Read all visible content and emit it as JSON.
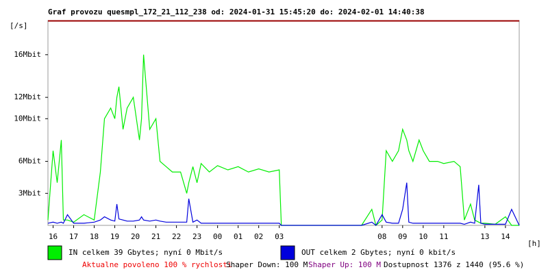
{
  "chart_data": {
    "type": "line",
    "title": "Graf provozu quesmpl_172_21_112_238 od: 2024-01-31 15:45:20 do: 2024-02-01 14:40:38",
    "y_label": "[/s]",
    "x_label": "[h]",
    "xlim": [
      15.75,
      38.67
    ],
    "ylim": [
      0,
      19.2
    ],
    "xticks": [
      16,
      17,
      18,
      19,
      20,
      21,
      22,
      23,
      {
        "value": 24,
        "label": "00"
      },
      {
        "value": 25,
        "label": "01"
      },
      {
        "value": 26,
        "label": "02"
      },
      {
        "value": 27,
        "label": "03"
      },
      {
        "value": 32,
        "label": "08"
      },
      {
        "value": 33,
        "label": "09"
      },
      {
        "value": 34,
        "label": "10"
      },
      {
        "value": 35,
        "label": "11"
      },
      {
        "value": 37,
        "label": "13"
      },
      {
        "value": 38,
        "label": "14"
      }
    ],
    "yticks": [
      {
        "value": 3,
        "label": "3Mbit"
      },
      {
        "value": 6,
        "label": "6Mbit"
      },
      {
        "value": 10,
        "label": "10Mbit"
      },
      {
        "value": 12,
        "label": "12Mbit"
      },
      {
        "value": 16,
        "label": "16Mbit"
      }
    ],
    "grid": false,
    "x": [
      15.75,
      16,
      16.2,
      16.4,
      16.5,
      16.7,
      17,
      17.5,
      18,
      18.3,
      18.5,
      18.8,
      19,
      19.1,
      19.2,
      19.4,
      19.6,
      19.9,
      20.2,
      20.3,
      20.4,
      20.7,
      21,
      21.2,
      21.5,
      21.8,
      22.2,
      22.5,
      22.6,
      22.8,
      23,
      23.2,
      23.6,
      24,
      24.5,
      25,
      25.5,
      26,
      26.5,
      27,
      27.1,
      28,
      29,
      30,
      31,
      31.5,
      31.7,
      32,
      32.2,
      32.5,
      32.8,
      33,
      33.2,
      33.3,
      33.5,
      33.8,
      34,
      34.3,
      34.7,
      35,
      35.5,
      35.8,
      36,
      36.3,
      36.5,
      36.7,
      36.8,
      37,
      37.5,
      38,
      38.3,
      38.67
    ],
    "series": [
      {
        "name": "IN celkem 39 Gbytes; nyní 0 Mbit/s",
        "color": "#00ee00",
        "values": [
          0.5,
          7,
          4,
          8,
          0.5,
          0.5,
          0.3,
          1,
          0.5,
          5,
          10,
          11,
          10,
          12,
          13,
          9,
          11,
          12,
          8,
          10,
          16,
          9,
          10,
          6,
          5.5,
          5,
          5,
          3,
          4,
          5.5,
          4,
          5.8,
          5,
          5.6,
          5.2,
          5.5,
          5,
          5.3,
          5,
          5.2,
          0,
          0,
          0,
          0,
          0,
          1.5,
          0,
          0.5,
          7,
          6,
          7,
          9,
          8,
          7,
          6,
          8,
          7,
          6,
          6,
          5.8,
          6,
          5.5,
          0.5,
          2,
          0.5,
          0.3,
          0.2,
          0.2,
          0.1,
          0.8,
          0,
          0
        ]
      },
      {
        "name": "OUT celkem 2 Gbytes; nyní 0 kbit/s",
        "color": "#0000dd",
        "values": [
          0.2,
          0.3,
          0.2,
          0.3,
          0.2,
          1,
          0.2,
          0.2,
          0.3,
          0.5,
          0.8,
          0.5,
          0.4,
          2,
          0.6,
          0.5,
          0.4,
          0.4,
          0.5,
          0.8,
          0.5,
          0.4,
          0.5,
          0.4,
          0.3,
          0.3,
          0.3,
          0.3,
          2.5,
          0.3,
          0.5,
          0.2,
          0.2,
          0.2,
          0.2,
          0.2,
          0.2,
          0.2,
          0.2,
          0.2,
          0,
          0,
          0,
          0,
          0,
          0.3,
          0,
          1,
          0.3,
          0.2,
          0.2,
          1.5,
          4,
          0.3,
          0.2,
          0.2,
          0.2,
          0.2,
          0.2,
          0.2,
          0.2,
          0.2,
          0.1,
          0.3,
          0.2,
          3.8,
          0.2,
          0.1,
          0.1,
          0.1,
          1.5,
          0
        ]
      }
    ],
    "footer": [
      {
        "text": "Aktualne povoleno 100 % rychlosti",
        "color": "#ee0000"
      },
      {
        "text": "Shaper Down: 100 M",
        "color": "#000000"
      },
      {
        "text": "Shaper Up: 100 M",
        "color": "#800080"
      },
      {
        "text": "Dostupnost 1376 z 1440 (95.6 %)",
        "color": "#000000"
      }
    ]
  }
}
